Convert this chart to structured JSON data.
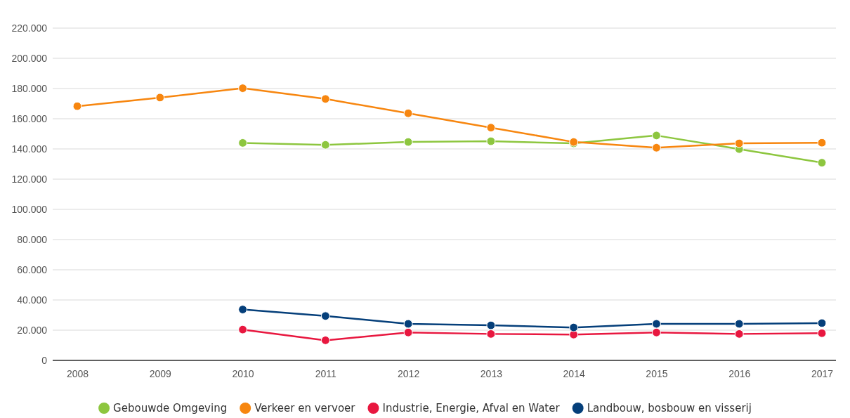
{
  "chart_data": {
    "type": "line",
    "categories": [
      "2008",
      "2009",
      "2010",
      "2011",
      "2012",
      "2013",
      "2014",
      "2015",
      "2016",
      "2017"
    ],
    "series": [
      {
        "name": "Gebouwde Omgeving",
        "color": "#8dc63f",
        "values": [
          null,
          null,
          144000,
          142700,
          144600,
          145100,
          143700,
          148900,
          139900,
          130900
        ]
      },
      {
        "name": "Verkeer en vervoer",
        "color": "#f7860f",
        "values": [
          168300,
          174000,
          180200,
          173100,
          163600,
          154100,
          144600,
          140800,
          143700,
          144100
        ]
      },
      {
        "name": "Industrie, Energie, Afval en Water",
        "color": "#e8173f",
        "values": [
          null,
          null,
          20400,
          13300,
          18500,
          17500,
          17100,
          18500,
          17500,
          18000
        ]
      },
      {
        "name": "Landbouw, bosbouw en visserij",
        "color": "#053f7a",
        "values": [
          null,
          null,
          33700,
          29400,
          24200,
          23200,
          21800,
          24200,
          24200,
          24700
        ]
      }
    ],
    "ylim": [
      0,
      220000
    ],
    "yticks": [
      {
        "value": 0,
        "label": "0"
      },
      {
        "value": 20000,
        "label": "20.000"
      },
      {
        "value": 40000,
        "label": "40.000"
      },
      {
        "value": 60000,
        "label": "60.000"
      },
      {
        "value": 80000,
        "label": "80.000"
      },
      {
        "value": 100000,
        "label": "100.000"
      },
      {
        "value": 120000,
        "label": "120.000"
      },
      {
        "value": 140000,
        "label": "140.000"
      },
      {
        "value": 160000,
        "label": "160.000"
      },
      {
        "value": 180000,
        "label": "180.000"
      },
      {
        "value": 200000,
        "label": "200.000"
      },
      {
        "value": 220000,
        "label": "220.000"
      }
    ],
    "grid": "y",
    "legend": "bottom",
    "marker": "circle",
    "line_style": "solid"
  }
}
